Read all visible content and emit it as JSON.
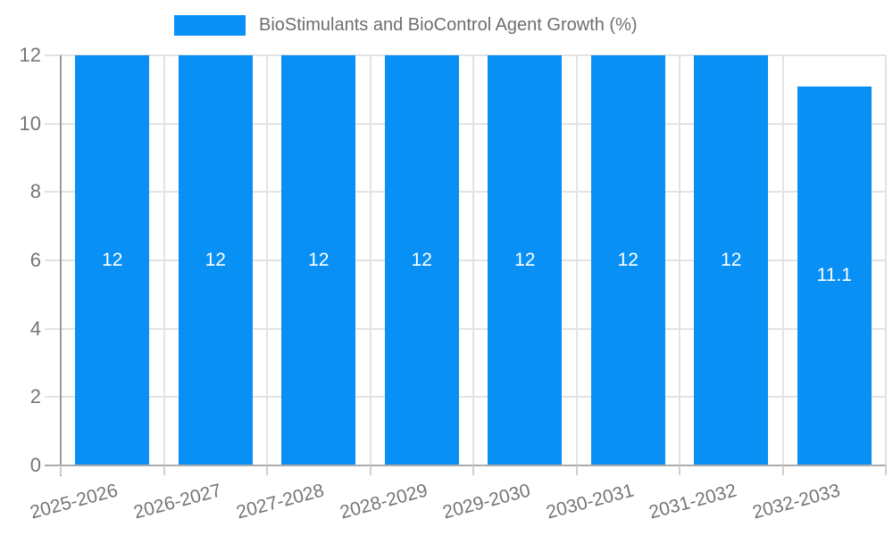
{
  "legend": {
    "label": "BioStimulants and BioControl Agent Growth (%)"
  },
  "chart_data": {
    "type": "bar",
    "title": "BioStimulants and BioControl Agent Growth (%)",
    "categories": [
      "2025-2026",
      "2026-2027",
      "2027-2028",
      "2028-2029",
      "2029-2030",
      "2030-2031",
      "2031-2032",
      "2032-2033"
    ],
    "values": [
      12,
      12,
      12,
      12,
      12,
      12,
      12,
      11.1
    ],
    "bar_labels": [
      "12",
      "12",
      "12",
      "12",
      "12",
      "12",
      "12",
      "11.1"
    ],
    "xlabel": "",
    "ylabel": "",
    "ylim": [
      0,
      12
    ],
    "yticks": [
      0,
      2,
      4,
      6,
      8,
      10,
      12
    ],
    "grid": true,
    "legend_position": "top-center",
    "colors": {
      "bar": "#0890F5",
      "bar_label": "#ffffff",
      "axis_text": "#757575",
      "legend_text": "#6e6e6e",
      "gridline": "#e3e3e3",
      "y_axis_line": "#9a9a9a",
      "x_axis_line": "#ababab",
      "background": "#ffffff"
    }
  }
}
